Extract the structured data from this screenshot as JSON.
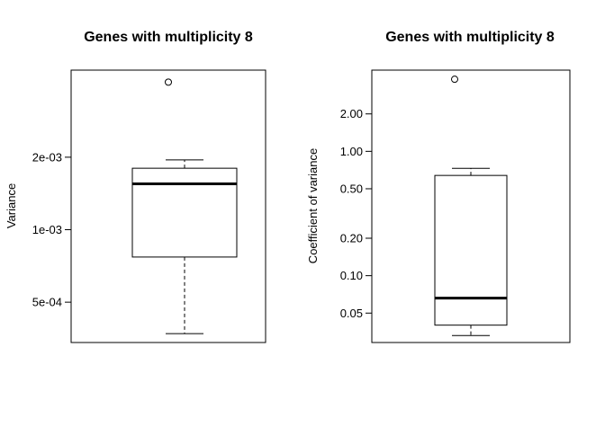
{
  "chart_data": [
    {
      "type": "box",
      "title": "Genes with multiplicity 8",
      "xlabel": "",
      "ylabel": "Variance",
      "yscale": "log",
      "ylim": [
        0.00034,
        0.0046
      ],
      "yticks": [
        0.0005,
        0.001,
        0.002
      ],
      "ytick_labels": [
        "5e-04",
        "1e-03",
        "2e-03"
      ],
      "box": {
        "whisker_low": 0.00037,
        "q1": 0.00077,
        "median": 0.00155,
        "q3": 0.0018,
        "whisker_high": 0.00195,
        "outliers": [
          0.0041
        ]
      }
    },
    {
      "type": "box",
      "title": "Genes with multiplicity 8",
      "xlabel": "",
      "ylabel": "Coefficient of variance",
      "yscale": "log",
      "ylim": [
        0.029,
        4.5
      ],
      "yticks": [
        0.05,
        0.1,
        0.2,
        0.5,
        1.0,
        2.0
      ],
      "ytick_labels": [
        "0.05",
        "0.10",
        "0.20",
        "0.50",
        "1.00",
        "2.00"
      ],
      "box": {
        "whisker_low": 0.033,
        "q1": 0.04,
        "median": 0.066,
        "q3": 0.64,
        "whisker_high": 0.73,
        "outliers": [
          3.8
        ]
      }
    }
  ]
}
